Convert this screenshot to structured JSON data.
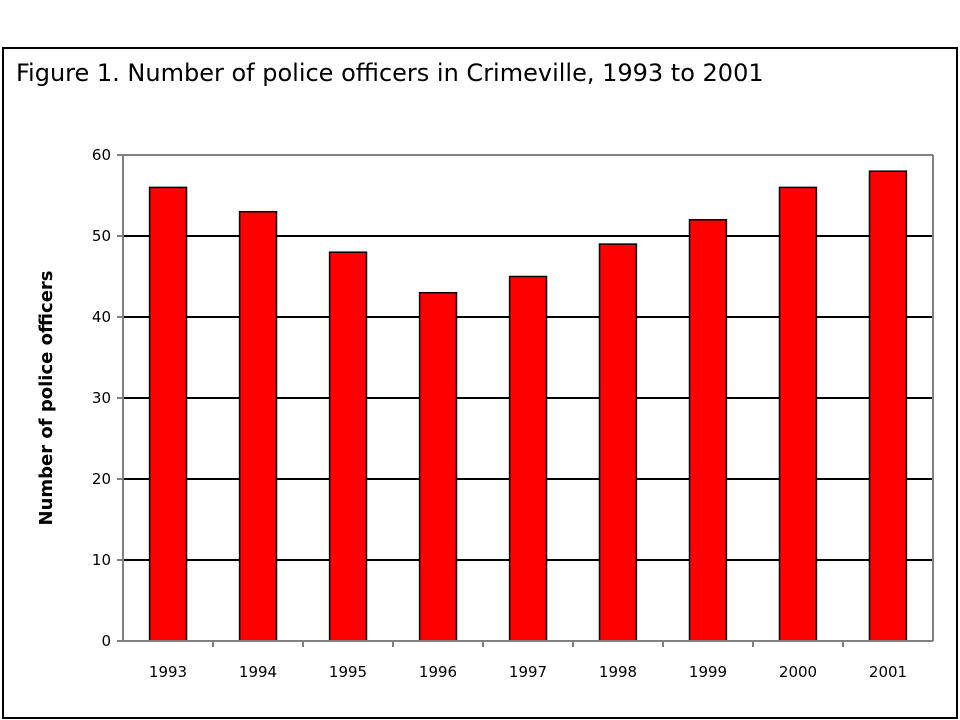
{
  "figure": {
    "title": "Figure 1. Number of police officers in Crimeville, 1993 to 2001"
  },
  "chart_data": {
    "type": "bar",
    "title": "Figure 1. Number of police officers in Crimeville, 1993 to 2001",
    "xlabel": "",
    "ylabel": "Number of police officers",
    "categories": [
      "1993",
      "1994",
      "1995",
      "1996",
      "1997",
      "1998",
      "1999",
      "2000",
      "2001"
    ],
    "series": [
      {
        "values": [
          56,
          53,
          48,
          43,
          45,
          49,
          52,
          56,
          58
        ],
        "color": "#ff0000"
      }
    ],
    "ylim": [
      0,
      60
    ],
    "yticks": [
      0,
      10,
      20,
      30,
      40,
      50,
      60
    ],
    "grid": true,
    "legend": "none",
    "colors": {
      "bar": "#ff0000",
      "bar_outline": "#000000",
      "gridline": "#000000",
      "axis": "#808080"
    }
  }
}
